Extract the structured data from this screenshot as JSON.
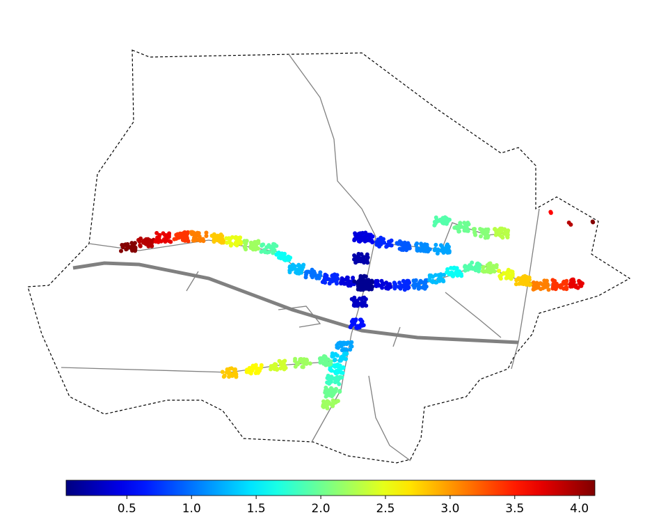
{
  "chart_data": {
    "type": "map-scatter",
    "colorbar": {
      "lim": [
        0.03,
        4.12
      ],
      "ticks": [
        0.5,
        {
          "value": 1,
          "label": "1.0"
        },
        1.5,
        {
          "value": 2,
          "label": "2.0"
        },
        2.5,
        {
          "value": 3,
          "label": "3.0"
        },
        3.5,
        {
          "value": 4,
          "label": "4.0"
        }
      ]
    },
    "routes": [
      {
        "values": [
          4.1,
          3.9,
          3.7,
          3.4,
          3.1,
          2.8,
          2.5,
          2.2,
          1.9,
          1.6,
          1.3,
          1.0,
          0.7,
          0.4,
          0.1
        ]
      },
      {
        "values": [
          0.1,
          0.4,
          0.7,
          1.0,
          1.3,
          1.6,
          1.9,
          2.2,
          2.5,
          2.8,
          3.1,
          3.4,
          3.7
        ]
      },
      {
        "values": [
          0.5,
          0.7,
          0.9,
          1.1,
          1.2
        ]
      },
      {
        "values": [
          0.4,
          0.2,
          0.1,
          0.3,
          0.6
        ]
      },
      {
        "values": [
          1.2,
          1.4,
          1.6,
          1.8,
          2.0,
          2.2
        ]
      },
      {
        "values": [
          2.8,
          2.6,
          2.4,
          2.2,
          2.0
        ]
      },
      {
        "values": [
          1.9,
          2.0,
          2.1,
          2.3
        ]
      },
      {
        "values": [
          3.6,
          3.9,
          4.1
        ]
      }
    ]
  }
}
